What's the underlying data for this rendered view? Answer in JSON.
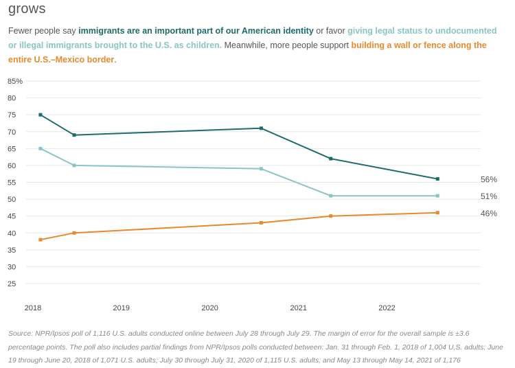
{
  "heading": "grows",
  "subtitle": {
    "p1": "Fewer people say ",
    "s1": "immigrants are an important part of our American identity",
    "p2": " or favor ",
    "s2": "giving legal status to undocumented or illegal immigrants brought to the U.S. as children.",
    "p3": " Meanwhile, more people support ",
    "s3": "building a wall or fence along the entire U.S.–Mexico border",
    "p4": "."
  },
  "colors": {
    "identity": "#1d6b6b",
    "legal_status": "#88c5c4",
    "wall": "#e68a2e",
    "grid": "#e6e6e6",
    "axis_text": "#444444"
  },
  "chart_data": {
    "type": "line",
    "x": [
      "2018-02-01",
      "2018-06-20",
      "2020-07-31",
      "2021-05-14",
      "2022-07-29"
    ],
    "xticks": [
      "2018",
      "2019",
      "2020",
      "2021",
      "2022"
    ],
    "ylim": [
      25,
      85
    ],
    "yticks": [
      "85%",
      "80",
      "75",
      "70",
      "65",
      "60",
      "55",
      "50",
      "45",
      "40",
      "35",
      "30",
      "25"
    ],
    "series": [
      {
        "key": "identity",
        "values": [
          75,
          69,
          71,
          62,
          56
        ],
        "end_label": "56%"
      },
      {
        "key": "legal_status",
        "values": [
          65,
          60,
          59,
          51,
          51
        ],
        "end_label": "51%"
      },
      {
        "key": "wall",
        "values": [
          38,
          40,
          43,
          45,
          46
        ],
        "end_label": "46%"
      }
    ]
  },
  "source": "Source: NPR/Ipsos poll of 1,116 U.S. adults conducted online between July 28 through July 29. The margin of error for the overall sample is ±3.6 percentage points. The poll also includes partial findings from NPR/Ipsos polls conducted between: Jan. 31 through Feb. 1, 2018 of 1,004 U.S. adults; June 19 through June 20, 2018 of 1,071 U.S. adults; July 30 through July 31, 2020 of 1,115 U.S. adults; and May 13 through May 14, 2021 of 1,176"
}
